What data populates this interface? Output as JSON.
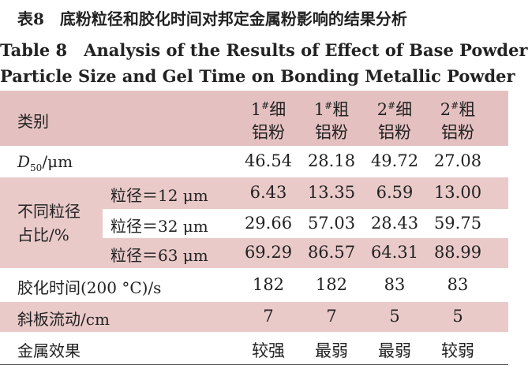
{
  "title": {
    "zh": "表8　底粉粒径和胶化时间对邦定金属粉影响的结果分析",
    "en_line1": "Table 8　Analysis of the Results of Effect of Base Powder",
    "en_line2": "Particle Size and Gel Time on Bonding Metallic Powder"
  },
  "table": {
    "header": {
      "label": "类别",
      "columns": [
        {
          "prefix": "1",
          "sup": "#",
          "line1": "细",
          "line2": "铝粉"
        },
        {
          "prefix": "1",
          "sup": "#",
          "line1": "粗",
          "line2": "铝粉"
        },
        {
          "prefix": "2",
          "sup": "#",
          "line1": "细",
          "line2": "铝粉"
        },
        {
          "prefix": "2",
          "sup": "#",
          "line1": "粗",
          "line2": "铝粉"
        }
      ]
    },
    "d50": {
      "symbol": "D",
      "sub": "50",
      "unit": "/μm",
      "cells": [
        "46.54",
        "28.18",
        "49.72",
        "27.08"
      ]
    },
    "group": {
      "label": [
        "不同粒径",
        "占比/%"
      ],
      "rows": [
        {
          "label": "粒径＝12 μm",
          "cells": [
            "6.43",
            "13.35",
            "6.59",
            "13.00"
          ]
        },
        {
          "label": "粒径＝32 μm",
          "cells": [
            "29.66",
            "57.03",
            "28.43",
            "59.75"
          ]
        },
        {
          "label": "粒径＝63 μm",
          "cells": [
            "69.29",
            "86.57",
            "64.31",
            "88.99"
          ]
        }
      ]
    },
    "rows": [
      {
        "label": "胶化时间(200 °C)/s",
        "cells": [
          "182",
          "182",
          "83",
          "83"
        ]
      },
      {
        "label": "斜板流动/cm",
        "cells": [
          "7",
          "7",
          "5",
          "5"
        ]
      },
      {
        "label": "金属效果",
        "cells": [
          "较强",
          "最弱",
          "最弱",
          "较弱"
        ]
      }
    ]
  }
}
